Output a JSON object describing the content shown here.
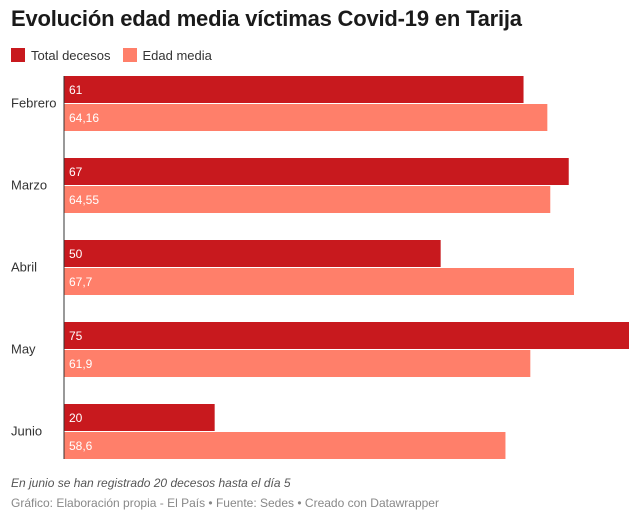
{
  "chart_data": {
    "type": "bar",
    "orientation": "horizontal",
    "title": "Evolución edad media víctimas Covid-19 en Tarija",
    "categories": [
      "Febrero",
      "Marzo",
      "Abril",
      "May",
      "Junio"
    ],
    "series": [
      {
        "name": "Total decesos",
        "values": [
          61,
          67,
          50,
          75,
          20
        ],
        "labels": [
          "61",
          "67",
          "50",
          "75",
          "20"
        ],
        "color": "#c8191e"
      },
      {
        "name": "Edad media",
        "values": [
          64.16,
          64.55,
          67.7,
          61.9,
          58.6
        ],
        "labels": [
          "64,16",
          "64,55",
          "67,7",
          "61,9",
          "58,6"
        ],
        "color": "#ff7f6a"
      }
    ],
    "xlim": [
      0,
      75
    ],
    "grid": false,
    "legend_position": "top-left"
  },
  "note": "En junio se han registrado 20 decesos hasta el día 5",
  "credits": {
    "grafico": "Gráfico: Elaboración propia - El País",
    "fuente": "Fuente: Sedes",
    "creado": "Creado con Datawrapper",
    "separator": " • "
  }
}
